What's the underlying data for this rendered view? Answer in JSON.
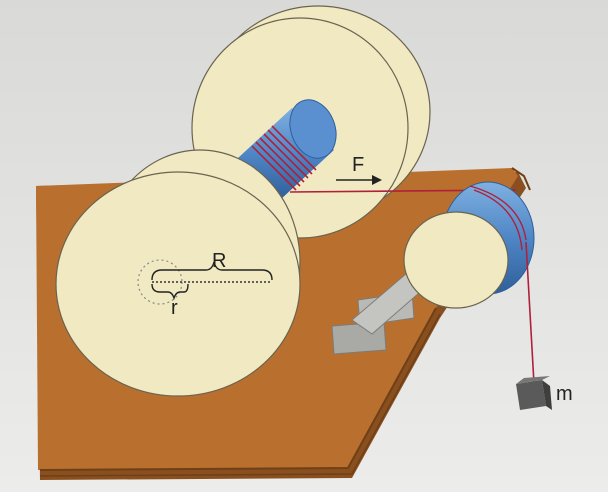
{
  "labels": {
    "force": "F",
    "big_radius": "R",
    "small_radius": "r",
    "mass": "m"
  },
  "colors": {
    "background": "#e6e6e4",
    "table": "#b9702f",
    "table_edge": "#8a4f1f",
    "disk": "#f1e9c2",
    "disk_edge": "#6a6350",
    "axle_blue": "#4f86c6",
    "string": "#b0203a",
    "bracket": "#b9b9b6",
    "mass": "#5a5a5a"
  }
}
